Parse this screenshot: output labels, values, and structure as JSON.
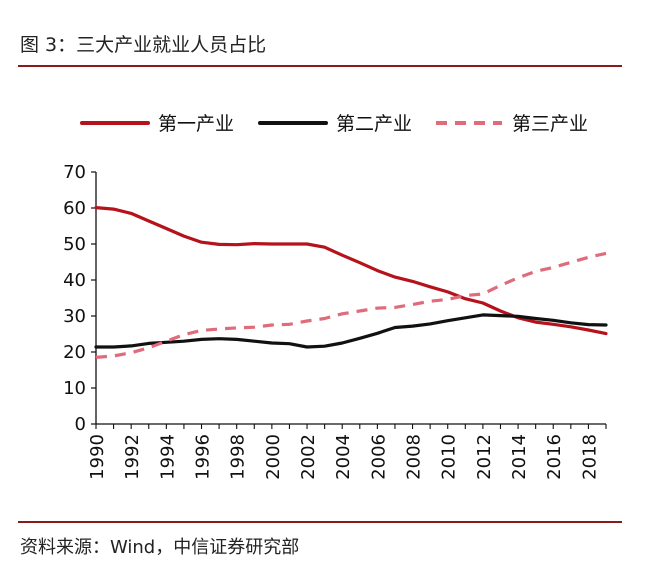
{
  "title": "图 3：三大产业就业人员占比",
  "source": "资料来源：Wind，中信证券研究部",
  "colors": {
    "accent_rule": "#8b1a1a"
  },
  "chart_data": {
    "type": "line",
    "title": "",
    "xlabel": "",
    "ylabel": "",
    "legend_position": "top",
    "grid": false,
    "x": [
      1990,
      1991,
      1992,
      1993,
      1994,
      1995,
      1996,
      1997,
      1998,
      1999,
      2000,
      2001,
      2002,
      2003,
      2004,
      2005,
      2006,
      2007,
      2008,
      2009,
      2010,
      2011,
      2012,
      2013,
      2014,
      2015,
      2016,
      2017,
      2018,
      2019
    ],
    "x_tick_labels": [
      "1990",
      "1992",
      "1994",
      "1996",
      "1998",
      "2000",
      "2002",
      "2004",
      "2006",
      "2008",
      "2010",
      "2012",
      "2014",
      "2016",
      "2018"
    ],
    "y_ticks": [
      0,
      10,
      20,
      30,
      40,
      50,
      60,
      70
    ],
    "ylim": [
      0,
      70
    ],
    "series": [
      {
        "name": "第一产业",
        "color": "#b5121b",
        "dash": "solid",
        "values": [
          60.1,
          59.7,
          58.5,
          56.4,
          54.3,
          52.2,
          50.5,
          49.9,
          49.8,
          50.1,
          50.0,
          50.0,
          50.0,
          49.1,
          46.9,
          44.8,
          42.6,
          40.8,
          39.6,
          38.1,
          36.7,
          34.8,
          33.6,
          31.4,
          29.5,
          28.3,
          27.7,
          27.0,
          26.1,
          25.1
        ]
      },
      {
        "name": "第二产业",
        "color": "#111111",
        "dash": "solid",
        "values": [
          21.4,
          21.4,
          21.7,
          22.4,
          22.7,
          23.0,
          23.5,
          23.7,
          23.5,
          23.0,
          22.5,
          22.3,
          21.4,
          21.6,
          22.5,
          23.8,
          25.2,
          26.8,
          27.2,
          27.8,
          28.7,
          29.5,
          30.3,
          30.1,
          29.9,
          29.3,
          28.8,
          28.1,
          27.6,
          27.5
        ]
      },
      {
        "name": "第三产业",
        "color": "#e06b7a",
        "dash": "dashed",
        "values": [
          18.5,
          18.9,
          19.8,
          21.2,
          23.0,
          24.8,
          26.0,
          26.4,
          26.7,
          26.9,
          27.5,
          27.7,
          28.6,
          29.3,
          30.6,
          31.4,
          32.2,
          32.4,
          33.2,
          34.1,
          34.6,
          35.7,
          36.1,
          38.5,
          40.6,
          42.4,
          43.5,
          44.9,
          46.3,
          47.4
        ]
      }
    ]
  }
}
